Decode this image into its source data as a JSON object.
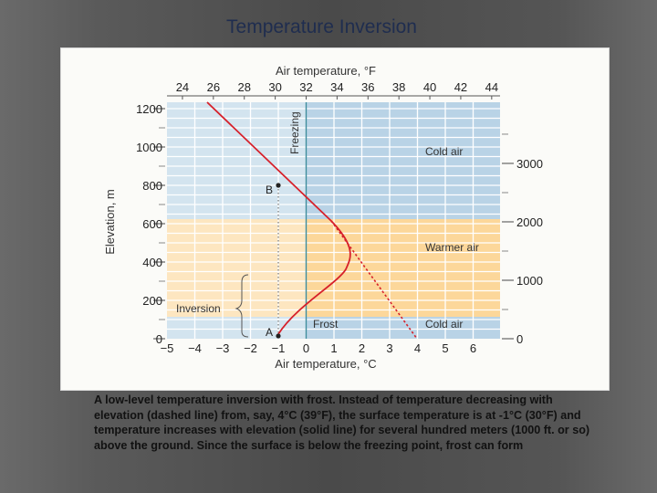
{
  "slide": {
    "title": "Temperature Inversion",
    "caption": "A low-level temperature inversion with frost. Instead of temperature decreasing with elevation (dashed line) from, say, 4°C (39°F), the surface temperature is at -1°C (30°F) and temperature increases with elevation (solid line) for several hundred meters (1000 ft. or so) above the ground. Since the surface is below the freezing point, frost can form"
  },
  "diagram": {
    "top_axis_label": "Air temperature, °F",
    "bottom_axis_label": "Air temperature, °C",
    "left_axis_label": "Elevation, m",
    "freezing_label": "Freezing",
    "region_labels": {
      "cold_air_top": "Cold air",
      "warmer_air": "Warmer air",
      "cold_air_bottom": "Cold air",
      "frost": "Frost"
    },
    "inversion_label": "Inversion",
    "point_a": "A",
    "point_b": "B",
    "celsius_ticks": [
      -5,
      -4,
      -3,
      -2,
      -1,
      0,
      1,
      2,
      3,
      4,
      5,
      6
    ],
    "celsius_tick_labels": [
      "−5",
      "−4",
      "−3",
      "−2",
      "−1",
      "0",
      "1",
      "2",
      "3",
      "4",
      "5",
      "6"
    ],
    "fahrenheit_ticks": [
      24,
      26,
      28,
      30,
      32,
      34,
      36,
      38,
      40,
      42,
      44
    ],
    "fahrenheit_tick_labels": [
      "24",
      "26",
      "28",
      "30",
      "32",
      "34",
      "36",
      "38",
      "40",
      "42",
      "44"
    ],
    "elevation_m_ticks": [
      0,
      200,
      400,
      600,
      800,
      1000,
      1200
    ],
    "elevation_m_tick_labels": [
      "0",
      "200",
      "400",
      "600",
      "800",
      "1000",
      "1200"
    ],
    "elevation_ft_ticks": [
      0,
      1000,
      2000,
      3000
    ],
    "elevation_ft_tick_labels": [
      "0",
      "1000",
      "2000",
      "3000"
    ],
    "colors": {
      "cold": "#b9d3e6",
      "warm": "#fcd79a",
      "grid": "#ffffff",
      "profile": "#d6202a",
      "freezing_line": "#3d8c9c"
    }
  }
}
